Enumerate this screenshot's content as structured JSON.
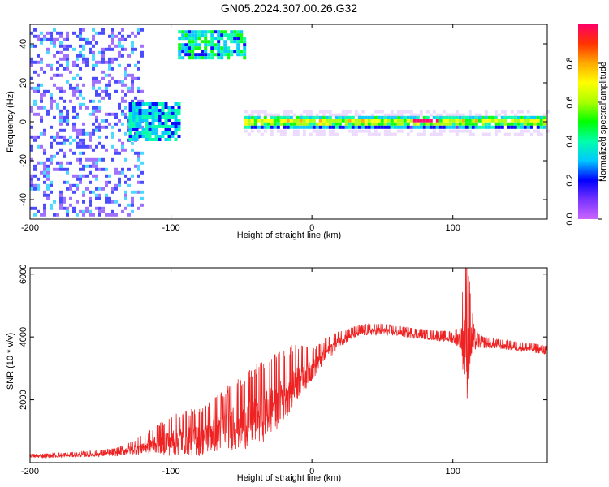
{
  "title": "GN05.2024.307.00.26.G32",
  "chart_data": [
    {
      "type": "heatmap",
      "xlabel": "Height of straight line (km)",
      "ylabel": "Frequency (Hz)",
      "xlim": [
        -200,
        167
      ],
      "ylim": [
        -50,
        50
      ],
      "xticks": [
        "-200",
        "-100",
        "0",
        "100"
      ],
      "yticks": [
        "-40",
        "-20",
        "0",
        "20",
        "40"
      ],
      "colorbar": {
        "label": "Normalized spectral amplitude",
        "range": [
          0,
          1
        ],
        "ticks": [
          "0.0",
          "0.2",
          "0.4",
          "0.6",
          "0.8"
        ],
        "colors": [
          "#cc66ff",
          "#7733ff",
          "#0000ff",
          "#00c8ff",
          "#00ffaa",
          "#00ff00",
          "#aaff00",
          "#ffff00",
          "#ffaa00",
          "#ff3300",
          "#ff0066"
        ]
      },
      "regions": [
        {
          "name": "scattered noise",
          "x": [
            -200,
            -120
          ],
          "y": [
            -50,
            48
          ],
          "amplitude": 0.15
        },
        {
          "name": "blob near 0 Hz",
          "x": [
            -130,
            -95
          ],
          "y": [
            -10,
            10
          ],
          "amplitude": 0.3
        },
        {
          "name": "blob near 40 Hz",
          "x": [
            -95,
            -48
          ],
          "y": [
            32,
            47
          ],
          "amplitude": 0.35
        },
        {
          "name": "main 0 Hz line",
          "x": [
            -48,
            167
          ],
          "y": [
            -3,
            3
          ],
          "amplitude": 0.6
        }
      ],
      "grid": false
    },
    {
      "type": "line",
      "xlabel": "Height of straight line (km)",
      "ylabel": "SNR (10 * v/v)",
      "xlim": [
        -200,
        167
      ],
      "ylim": [
        0,
        6200
      ],
      "xticks": [
        "-200",
        "-100",
        "0",
        "100"
      ],
      "yticks": [
        "2000",
        "4000",
        "6000"
      ],
      "color": "#ee2222",
      "series": [
        {
          "x": [
            -200,
            -180,
            -160,
            -140,
            -130,
            -120,
            -110,
            -100,
            -90,
            -80,
            -70,
            -60,
            -50,
            -40,
            -30,
            -20,
            -10,
            0,
            10,
            20,
            30,
            40,
            50,
            60,
            70,
            80,
            90,
            100,
            105,
            108,
            110,
            112,
            115,
            120,
            130,
            140,
            150,
            160,
            167
          ],
          "y": [
            200,
            220,
            250,
            300,
            400,
            500,
            650,
            700,
            800,
            800,
            1000,
            1200,
            1300,
            1500,
            1800,
            2200,
            2700,
            3000,
            3500,
            3900,
            4100,
            4200,
            4200,
            4150,
            4100,
            4050,
            4000,
            3950,
            3950,
            4000,
            3950,
            3900,
            3850,
            3800,
            3750,
            3700,
            3650,
            3600,
            3550
          ],
          "noise": [
            50,
            60,
            70,
            100,
            150,
            250,
            350,
            500,
            550,
            600,
            700,
            800,
            900,
            1000,
            1000,
            900,
            700,
            400,
            300,
            200,
            150,
            150,
            150,
            130,
            130,
            130,
            130,
            150,
            300,
            1400,
            2000,
            1200,
            300,
            150,
            130,
            120,
            120,
            120,
            120
          ]
        }
      ],
      "grid": false
    }
  ]
}
